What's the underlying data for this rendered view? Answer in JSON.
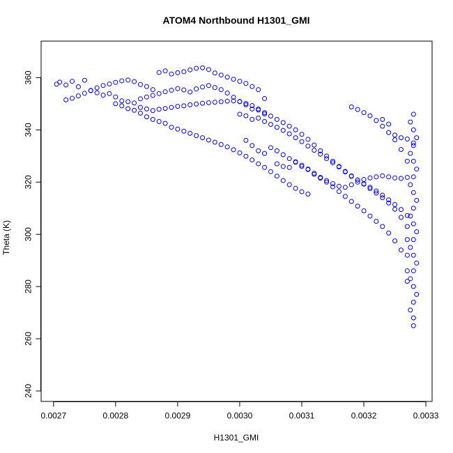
{
  "chart_data": {
    "type": "scatter",
    "title": "ATOM4 Northbound H1301_GMI",
    "xlabel": "H1301_GMI",
    "ylabel": "Theta (K)",
    "xlim": [
      0.00268,
      0.00331
    ],
    "ylim": [
      236,
      374
    ],
    "xticks": [
      0.0027,
      0.0028,
      0.0029,
      0.003,
      0.0031,
      0.0032,
      0.0033
    ],
    "xtick_labels": [
      "0.0027",
      "0.0028",
      "0.0029",
      "0.0030",
      "0.0031",
      "0.0032",
      "0.0033"
    ],
    "yticks": [
      240,
      260,
      280,
      300,
      320,
      340,
      360
    ],
    "ytick_labels": [
      "240",
      "260",
      "280",
      "300",
      "320",
      "340",
      "360"
    ],
    "marker": "open-circle",
    "color": "#0000ff",
    "grid": false,
    "series": [
      {
        "values": [
          [
            0.002705,
            357.5
          ],
          [
            0.00271,
            358.3
          ],
          [
            0.00272,
            357.2
          ],
          [
            0.00273,
            358.6
          ],
          [
            0.00274,
            356.5
          ],
          [
            0.00275,
            359.0
          ],
          [
            0.00276,
            355.1
          ],
          [
            0.00277,
            354.2
          ],
          [
            0.00278,
            353.3
          ],
          [
            0.00279,
            353.9
          ],
          [
            0.0028,
            352.6
          ],
          [
            0.00281,
            351.1
          ],
          [
            0.00282,
            350.8
          ],
          [
            0.00283,
            350.3
          ],
          [
            0.00284,
            351.9
          ],
          [
            0.00285,
            352.6
          ],
          [
            0.00286,
            353.2
          ],
          [
            0.00287,
            353.9
          ],
          [
            0.00288,
            354.6
          ],
          [
            0.00289,
            355.2
          ],
          [
            0.0029,
            355.8
          ],
          [
            0.00291,
            355.3
          ],
          [
            0.00292,
            354.5
          ],
          [
            0.00293,
            355.7
          ],
          [
            0.00294,
            356.4
          ],
          [
            0.00295,
            357.0
          ],
          [
            0.00296,
            356.2
          ],
          [
            0.00297,
            355.4
          ],
          [
            0.00298,
            354.1
          ],
          [
            0.00299,
            352.5
          ],
          [
            0.003,
            350.8
          ],
          [
            0.00301,
            349.6
          ],
          [
            0.00302,
            348.0
          ],
          [
            0.00303,
            347.6
          ],
          [
            0.00304,
            346.1
          ],
          [
            0.00287,
            362.0
          ],
          [
            0.00288,
            362.6
          ],
          [
            0.00289,
            361.4
          ],
          [
            0.0029,
            361.9
          ],
          [
            0.00291,
            362.3
          ],
          [
            0.00292,
            363.0
          ],
          [
            0.00293,
            363.6
          ],
          [
            0.00294,
            363.8
          ],
          [
            0.00295,
            363.1
          ],
          [
            0.00296,
            361.8
          ],
          [
            0.00297,
            361.0
          ],
          [
            0.00298,
            360.2
          ],
          [
            0.00299,
            359.4
          ],
          [
            0.003,
            358.6
          ],
          [
            0.00301,
            357.8
          ],
          [
            0.00302,
            356.6
          ],
          [
            0.00303,
            355.4
          ],
          [
            0.00304,
            352.0
          ],
          [
            0.00272,
            351.5
          ],
          [
            0.00273,
            352.1
          ],
          [
            0.00274,
            353.0
          ],
          [
            0.00275,
            354.0
          ],
          [
            0.00276,
            355.0
          ],
          [
            0.00277,
            356.1
          ],
          [
            0.00278,
            357.0
          ],
          [
            0.00279,
            357.6
          ],
          [
            0.0028,
            358.2
          ],
          [
            0.00281,
            358.8
          ],
          [
            0.00282,
            359.1
          ],
          [
            0.00283,
            358.5
          ],
          [
            0.00284,
            357.4
          ],
          [
            0.00285,
            356.6
          ],
          [
            0.00286,
            355.4
          ],
          [
            0.0028,
            350.0
          ],
          [
            0.00281,
            349.2
          ],
          [
            0.00282,
            348.1
          ],
          [
            0.00283,
            347.5
          ],
          [
            0.00284,
            346.4
          ],
          [
            0.00285,
            345.0
          ],
          [
            0.00286,
            344.0
          ],
          [
            0.00287,
            343.2
          ],
          [
            0.00288,
            342.5
          ],
          [
            0.00284,
            348.6
          ],
          [
            0.00285,
            348.0
          ],
          [
            0.00286,
            347.4
          ],
          [
            0.00287,
            347.9
          ],
          [
            0.00288,
            348.2
          ],
          [
            0.00289,
            348.6
          ],
          [
            0.0029,
            349.0
          ],
          [
            0.00291,
            349.2
          ],
          [
            0.00292,
            349.6
          ],
          [
            0.00293,
            349.9
          ],
          [
            0.00294,
            350.2
          ],
          [
            0.00295,
            350.4
          ],
          [
            0.00296,
            350.6
          ],
          [
            0.00297,
            350.8
          ],
          [
            0.00298,
            351.0
          ],
          [
            0.00299,
            351.1
          ],
          [
            0.003,
            350.9
          ],
          [
            0.00301,
            350.1
          ],
          [
            0.00302,
            349.3
          ],
          [
            0.00303,
            348.0
          ],
          [
            0.00304,
            346.6
          ],
          [
            0.00305,
            345.3
          ],
          [
            0.00306,
            344.0
          ],
          [
            0.00307,
            342.8
          ],
          [
            0.00308,
            341.4
          ],
          [
            0.00309,
            340.0
          ],
          [
            0.0031,
            338.3
          ],
          [
            0.00311,
            336.4
          ],
          [
            0.00312,
            334.2
          ],
          [
            0.00313,
            332.0
          ],
          [
            0.00314,
            330.0
          ],
          [
            0.00315,
            328.0
          ],
          [
            0.00316,
            326.0
          ],
          [
            0.00317,
            323.9
          ],
          [
            0.00318,
            322.2
          ],
          [
            0.00319,
            320.8
          ],
          [
            0.0032,
            319.4
          ],
          [
            0.00321,
            318.0
          ],
          [
            0.00322,
            316.6
          ],
          [
            0.00323,
            315.0
          ],
          [
            0.00324,
            313.2
          ],
          [
            0.00325,
            311.4
          ],
          [
            0.00326,
            309.5
          ],
          [
            0.00327,
            307.2
          ],
          [
            0.00289,
            341.0
          ],
          [
            0.0029,
            340.3
          ],
          [
            0.00291,
            339.5
          ],
          [
            0.00292,
            338.7
          ],
          [
            0.00293,
            337.8
          ],
          [
            0.00294,
            337.0
          ],
          [
            0.00295,
            336.1
          ],
          [
            0.00296,
            335.3
          ],
          [
            0.00297,
            334.4
          ],
          [
            0.00298,
            333.5
          ],
          [
            0.00299,
            332.4
          ],
          [
            0.003,
            331.2
          ],
          [
            0.00301,
            329.9
          ],
          [
            0.00302,
            328.5
          ],
          [
            0.00303,
            327.0
          ],
          [
            0.00304,
            325.6
          ],
          [
            0.00305,
            324.0
          ],
          [
            0.00306,
            322.3
          ],
          [
            0.00307,
            320.6
          ],
          [
            0.00308,
            319.0
          ],
          [
            0.00309,
            317.6
          ],
          [
            0.0031,
            316.3
          ],
          [
            0.00311,
            315.4
          ],
          [
            0.003,
            346.0
          ],
          [
            0.00301,
            345.4
          ],
          [
            0.00302,
            344.0
          ],
          [
            0.00303,
            344.5
          ],
          [
            0.00304,
            343.2
          ],
          [
            0.00305,
            342.1
          ],
          [
            0.00306,
            341.0
          ],
          [
            0.00307,
            339.8
          ],
          [
            0.00308,
            338.5
          ],
          [
            0.00309,
            337.0
          ],
          [
            0.0031,
            335.5
          ],
          [
            0.00311,
            333.8
          ],
          [
            0.00312,
            332.2
          ],
          [
            0.00313,
            330.7
          ],
          [
            0.00314,
            329.0
          ],
          [
            0.00315,
            327.4
          ],
          [
            0.00316,
            325.8
          ],
          [
            0.00317,
            324.1
          ],
          [
            0.00318,
            322.4
          ],
          [
            0.00319,
            320.8
          ],
          [
            0.0032,
            319.2
          ],
          [
            0.00321,
            317.5
          ],
          [
            0.00322,
            315.8
          ],
          [
            0.00323,
            314.0
          ],
          [
            0.00324,
            312.0
          ],
          [
            0.00325,
            309.6
          ],
          [
            0.00326,
            306.5
          ],
          [
            0.00327,
            303.0
          ],
          [
            0.00301,
            336.0
          ],
          [
            0.00302,
            334.0
          ],
          [
            0.00303,
            332.0
          ],
          [
            0.00304,
            331.0
          ],
          [
            0.00305,
            333.2
          ],
          [
            0.00306,
            332.0
          ],
          [
            0.00307,
            330.5
          ],
          [
            0.00308,
            329.0
          ],
          [
            0.00309,
            327.8
          ],
          [
            0.0031,
            326.5
          ],
          [
            0.00311,
            325.0
          ],
          [
            0.00312,
            323.4
          ],
          [
            0.00313,
            321.8
          ],
          [
            0.00314,
            320.0
          ],
          [
            0.00315,
            318.2
          ],
          [
            0.00316,
            316.4
          ],
          [
            0.00317,
            314.5
          ],
          [
            0.00318,
            312.6
          ],
          [
            0.00319,
            310.8
          ],
          [
            0.0032,
            309.0
          ],
          [
            0.00321,
            307.0
          ],
          [
            0.00322,
            305.0
          ],
          [
            0.00323,
            303.0
          ],
          [
            0.00324,
            300.5
          ],
          [
            0.00325,
            297.5
          ],
          [
            0.00326,
            294.0
          ],
          [
            0.00306,
            327.0
          ],
          [
            0.00307,
            326.0
          ],
          [
            0.00308,
            325.6
          ],
          [
            0.00309,
            327.6
          ],
          [
            0.0031,
            326.0
          ],
          [
            0.00311,
            324.8
          ],
          [
            0.00312,
            323.0
          ],
          [
            0.00313,
            321.5
          ],
          [
            0.00314,
            320.6
          ],
          [
            0.00315,
            319.4
          ],
          [
            0.00316,
            318.4
          ],
          [
            0.00317,
            318.0
          ],
          [
            0.00318,
            319.0
          ],
          [
            0.00319,
            320.0
          ],
          [
            0.0032,
            321.0
          ],
          [
            0.00321,
            321.6
          ],
          [
            0.00322,
            322.0
          ],
          [
            0.00323,
            322.4
          ],
          [
            0.00324,
            322.0
          ],
          [
            0.00325,
            321.6
          ],
          [
            0.00326,
            321.4
          ],
          [
            0.00327,
            321.8
          ],
          [
            0.00318,
            348.8
          ],
          [
            0.00319,
            347.8
          ],
          [
            0.0032,
            346.6
          ],
          [
            0.00321,
            345.4
          ],
          [
            0.00322,
            343.6
          ],
          [
            0.00323,
            341.4
          ],
          [
            0.00324,
            339.0
          ],
          [
            0.00325,
            336.2
          ],
          [
            0.00326,
            332.5
          ],
          [
            0.00327,
            328.0
          ],
          [
            0.00323,
            344.0
          ],
          [
            0.00324,
            342.2
          ],
          [
            0.00325,
            338.0
          ],
          [
            0.00326,
            337.0
          ],
          [
            0.00327,
            336.5
          ],
          [
            0.00328,
            335.0
          ],
          [
            0.00328,
            346.0
          ],
          [
            0.00328,
            340.0
          ],
          [
            0.00328,
            334.0
          ],
          [
            0.00328,
            328.0
          ],
          [
            0.00328,
            322.0
          ],
          [
            0.00328,
            316.0
          ],
          [
            0.00328,
            310.0
          ],
          [
            0.00328,
            304.0
          ],
          [
            0.00328,
            298.0
          ],
          [
            0.00328,
            292.0
          ],
          [
            0.00328,
            286.0
          ],
          [
            0.00328,
            280.0
          ],
          [
            0.00328,
            274.0
          ],
          [
            0.00328,
            268.0
          ],
          [
            0.00328,
            265.0
          ],
          [
            0.003275,
            343.0
          ],
          [
            0.003275,
            331.0
          ],
          [
            0.003275,
            319.0
          ],
          [
            0.003275,
            307.0
          ],
          [
            0.003275,
            295.0
          ],
          [
            0.003275,
            283.0
          ],
          [
            0.003275,
            271.0
          ],
          [
            0.003285,
            337.0
          ],
          [
            0.003285,
            325.0
          ],
          [
            0.003285,
            313.0
          ],
          [
            0.003285,
            301.0
          ],
          [
            0.003285,
            289.0
          ],
          [
            0.003285,
            277.0
          ],
          [
            0.00327,
            298.0
          ],
          [
            0.00327,
            292.0
          ],
          [
            0.00327,
            286.0
          ],
          [
            0.00327,
            282.0
          ]
        ]
      }
    ]
  }
}
